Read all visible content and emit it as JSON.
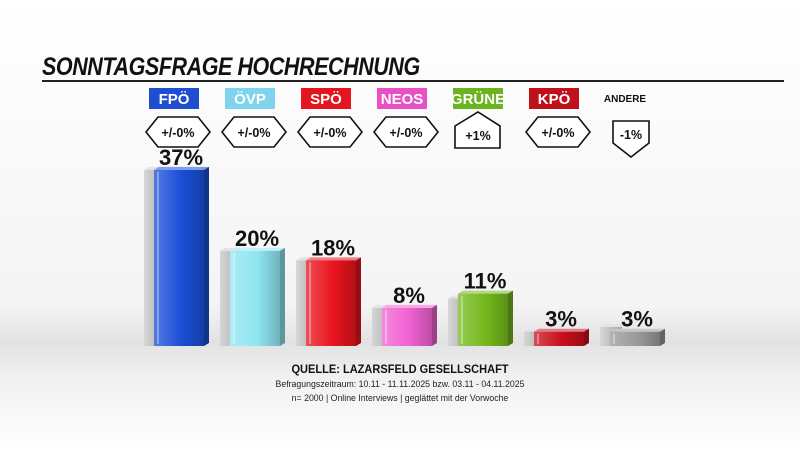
{
  "chart_data": {
    "type": "bar",
    "title": "SONNTAGSFRAGE HOCHRECHNUNG",
    "categories": [
      "FPÖ",
      "ÖVP",
      "SPÖ",
      "NEOS",
      "GRÜNE",
      "KPÖ",
      "ANDERE"
    ],
    "values": [
      37,
      20,
      18,
      8,
      11,
      3,
      3
    ],
    "value_labels": [
      "37%",
      "20%",
      "18%",
      "8%",
      "11%",
      "3%",
      "3%"
    ],
    "changes": [
      "+/-0%",
      "+/-0%",
      "+/-0%",
      "+/-0%",
      "+1%",
      "+/-0%",
      "-1%"
    ],
    "change_direction": [
      "neutral",
      "neutral",
      "neutral",
      "neutral",
      "up",
      "neutral",
      "down"
    ],
    "previous_values_shown_as_grey_bars": [
      37,
      20,
      18,
      8,
      10,
      3,
      4
    ],
    "colors": [
      "#1a4fd6",
      "#8fe6f2",
      "#e8141e",
      "#f062d2",
      "#74b81c",
      "#c8101c",
      "#9a9a9a"
    ],
    "label_badge_colors": [
      "#1f4fd0",
      "#7fd3ec",
      "#e4151f",
      "#e94fc6",
      "#6db31e",
      "#c0101a",
      "none"
    ],
    "ylim": [
      0,
      40
    ],
    "grid": false,
    "legend": "none"
  },
  "source": {
    "title": "QUELLE: LAZARSFELD GESELLSCHAFT",
    "line1": "Befragungszeitraum:   10.11 - 11.11.2025   bzw.   03.11 - 04.11.2025",
    "line2": "n= 2000 | Online Interviews | geglättet mit der Vorwoche"
  }
}
